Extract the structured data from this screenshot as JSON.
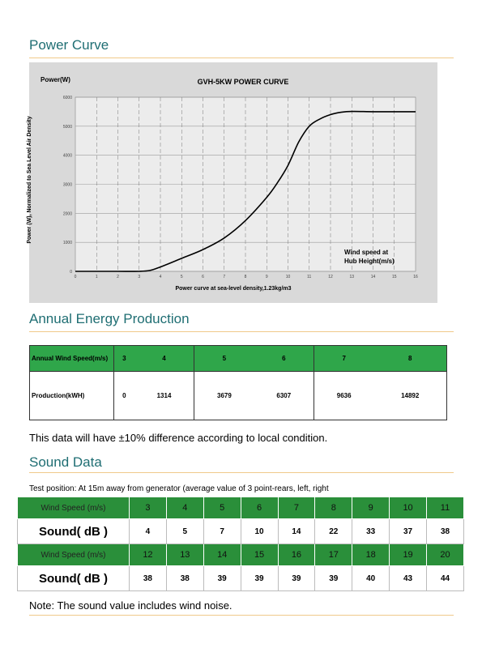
{
  "power_curve": {
    "heading": "Power Curve",
    "chart_data": {
      "type": "line",
      "title": "GVH-5KW  POWER CURVE",
      "top_label": "Power(W)",
      "ylabel": "Power (W), Normalized to Sea Level Air Density",
      "xlabel": "Power curve at sea-level density,1.23kg/m3",
      "annotation_line1": "Wind speed at",
      "annotation_line2": "Hub Height(m/s)",
      "xlim": [
        0,
        16
      ],
      "ylim": [
        0,
        6000
      ],
      "x_ticks": [
        "0",
        "1",
        "2",
        "3",
        "4",
        "5",
        "6",
        "7",
        "8",
        "9",
        "10",
        "11",
        "12",
        "13",
        "14",
        "15",
        "16"
      ],
      "y_ticks": [
        "0",
        "1000",
        "2000",
        "3000",
        "4000",
        "5000",
        "6000"
      ],
      "series": [
        {
          "x": [
            0,
            1,
            2,
            3,
            3.5,
            4,
            5,
            6,
            7,
            8,
            9,
            9.5,
            10,
            10.5,
            11,
            11.5,
            12,
            12.5,
            13,
            14,
            15,
            16
          ],
          "y": [
            0,
            0,
            0,
            0,
            30,
            150,
            450,
            750,
            1150,
            1750,
            2550,
            3050,
            3650,
            4450,
            5000,
            5250,
            5400,
            5480,
            5510,
            5500,
            5500,
            5500
          ]
        }
      ]
    }
  },
  "aep": {
    "heading": "Annual Energy Production",
    "row1_label": "Annual Wind Speed(m/s)",
    "row2_label": "Production(kWH)",
    "speeds": [
      "3",
      "4",
      "5",
      "6",
      "7",
      "8"
    ],
    "production": [
      "0",
      "1314",
      "3679",
      "6307",
      "9636",
      "14892"
    ],
    "note": "This data will have ±10% difference according to local condition."
  },
  "sound": {
    "heading": "Sound Data",
    "test_position": "Test position: At 15m away from generator (average value of 3 point-rears, left, right",
    "ws_label": "Wind Speed (m/s)",
    "db_label": "Sound( dB )",
    "ws1": [
      "3",
      "4",
      "5",
      "6",
      "7",
      "8",
      "9",
      "10",
      "11"
    ],
    "db1": [
      "4",
      "5",
      "7",
      "10",
      "14",
      "22",
      "33",
      "37",
      "38"
    ],
    "ws2": [
      "12",
      "13",
      "14",
      "15",
      "16",
      "17",
      "18",
      "19",
      "20"
    ],
    "db2": [
      "38",
      "38",
      "39",
      "39",
      "39",
      "39",
      "40",
      "43",
      "44"
    ],
    "note": "Note: The sound value includes wind noise."
  },
  "colors": {
    "heading": "#1f6e73",
    "rule": "#f0c98a",
    "green": "#2fa64a"
  }
}
